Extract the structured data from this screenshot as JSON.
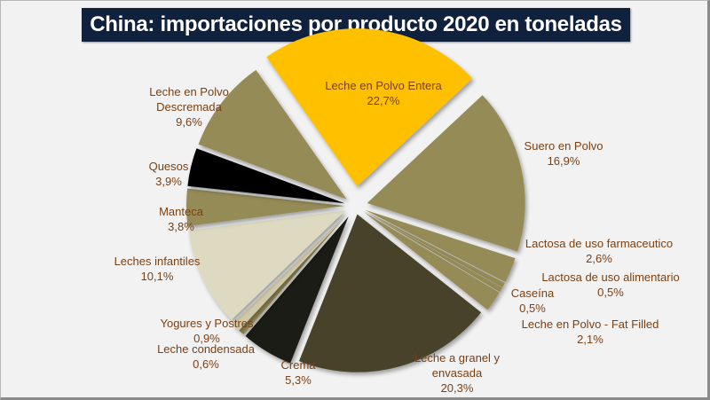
{
  "chart_data": {
    "type": "pie",
    "title": "China: importaciones por producto 2020 en toneladas",
    "start_angle_deg": -35,
    "direction": "clockwise",
    "exploded": true,
    "slices": [
      {
        "label": "Leche en Polvo Entera",
        "value": 22.7,
        "display": "22,7%",
        "color": "#ffc000"
      },
      {
        "label": "Suero en Polvo",
        "value": 16.9,
        "display": "16,9%",
        "color": "#958b57"
      },
      {
        "label": "Lactosa de uso farmaceutico",
        "value": 2.6,
        "display": "2,6%",
        "color": "#958b57"
      },
      {
        "label": "Lactosa de uso alimentario",
        "value": 0.5,
        "display": "0,5%",
        "color": "#958b57"
      },
      {
        "label": "Caseína",
        "value": 0.5,
        "display": "0,5%",
        "color": "#958b57"
      },
      {
        "label": "Leche en Polvo - Fat Filled",
        "value": 2.1,
        "display": "2,1%",
        "color": "#958b57"
      },
      {
        "label": "Leche a granel y envasada",
        "value": 20.3,
        "display": "20,3%",
        "color": "#4a432c"
      },
      {
        "label": "Crema",
        "value": 5.3,
        "display": "5,3%",
        "color": "#1f1c12"
      },
      {
        "label": "Leche condensada",
        "value": 0.6,
        "display": "0,6%",
        "color": "#958b57"
      },
      {
        "label": "Yogures y Postres",
        "value": 0.9,
        "display": "0,9%",
        "color": "#cfcba8"
      },
      {
        "label": "Leches infantiles",
        "value": 10.1,
        "display": "10,1%",
        "color": "#dedac2"
      },
      {
        "label": "Manteca",
        "value": 3.8,
        "display": "3,8%",
        "color": "#958b57"
      },
      {
        "label": "Quesos",
        "value": 3.9,
        "display": "3,9%",
        "color": "#000000"
      },
      {
        "label": "Leche en Polvo Descremada",
        "value": 9.6,
        "display": "9,6%",
        "color": "#958b57"
      }
    ],
    "labels": [
      {
        "lines": [
          "Leche en Polvo Entera",
          "22,7%"
        ]
      },
      {
        "lines": [
          "Suero en Polvo",
          "16,9%"
        ]
      },
      {
        "lines": [
          "Lactosa de uso farmaceutico",
          "2,6%"
        ]
      },
      {
        "lines": [
          "Lactosa de uso alimentario",
          "0,5%"
        ]
      },
      {
        "lines": [
          "Caseína",
          "0,5%"
        ]
      },
      {
        "lines": [
          "Leche en Polvo - Fat Filled",
          "2,1%"
        ]
      },
      {
        "lines": [
          "Leche a granel y",
          "envasada",
          "20,3%"
        ]
      },
      {
        "lines": [
          "Crema",
          "5,3%"
        ]
      },
      {
        "lines": [
          "Leche condensada",
          "0,6%"
        ]
      },
      {
        "lines": [
          "Yogures y Postres",
          "0,9%"
        ]
      },
      {
        "lines": [
          "Leches infantiles",
          "10,1%"
        ]
      },
      {
        "lines": [
          "Manteca",
          "3,8%"
        ]
      },
      {
        "lines": [
          "Quesos",
          "3,9%"
        ]
      },
      {
        "lines": [
          "Leche en Polvo",
          "Descremada",
          "9,6%"
        ]
      }
    ],
    "label_color": "#7b3f12",
    "title_bg": "#10213e",
    "title_color": "#ffffff"
  }
}
